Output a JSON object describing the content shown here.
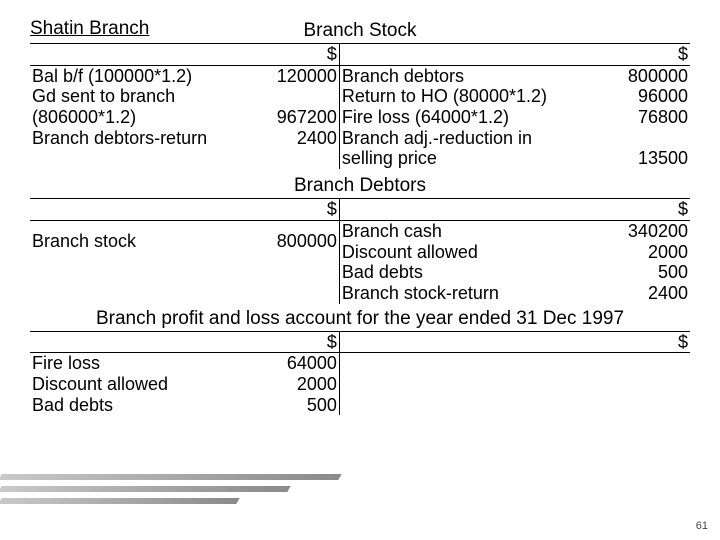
{
  "colors": {
    "stripe_dark": "#8a8a8a",
    "stripe_light": "#c9c9c9",
    "text": "#000000",
    "bg": "#ffffff"
  },
  "branch_name": "Shatin Branch",
  "page_number": "61",
  "sections": [
    {
      "title": "Branch Stock",
      "header_left": "$",
      "header_right": "$",
      "rows": [
        {
          "ld": "Bal b/f (100000*1.2)",
          "la": "120000",
          "rd": "Branch debtors",
          "ra": "800000"
        },
        {
          "ld": "Gd sent to branch",
          "la": "",
          "rd": "Return to HO (80000*1.2)",
          "ra": "96000"
        },
        {
          "ld": "(806000*1.2)",
          "la": "967200",
          "rd": "Fire loss  (64000*1.2)",
          "ra": "76800"
        },
        {
          "ld": "Branch debtors-return",
          "la": "2400",
          "rd": "Branch adj.-reduction in",
          "ra": ""
        },
        {
          "ld": "",
          "la": "",
          "rd": "selling price",
          "ra": "13500"
        }
      ]
    },
    {
      "title": "Branch Debtors",
      "header_left": "$",
      "header_right": "$",
      "rows": [
        {
          "ld": "Branch stock",
          "la": "800000",
          "rd": "Branch cash",
          "ra": "340200"
        },
        {
          "ld": "",
          "la": "",
          "rd": "Discount allowed",
          "ra": "2000"
        },
        {
          "ld": "",
          "la": "",
          "rd": " Bad debts",
          "ra": "500"
        },
        {
          "ld": "",
          "la": "",
          "rd": " Branch stock-return",
          "ra": "2400"
        }
      ]
    },
    {
      "title": "Branch profit and loss account for the year ended 31 Dec 1997",
      "header_left": "$",
      "header_right": "$",
      "rows": [
        {
          "ld": "Fire loss",
          "la": "64000",
          "rd": "",
          "ra": ""
        },
        {
          "ld": "Discount allowed",
          "la": "2000",
          "rd": "",
          "ra": ""
        },
        {
          "ld": "Bad debts",
          "la": "500",
          "rd": "",
          "ra": ""
        }
      ]
    }
  ]
}
